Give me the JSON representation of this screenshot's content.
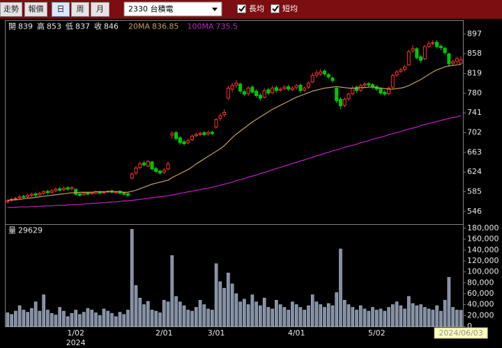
{
  "toolbar": {
    "buttons": [
      "走勢",
      "報價",
      "日",
      "周",
      "月"
    ],
    "selected": 2,
    "symbol": "2330 台積電",
    "checkboxes": [
      {
        "label": "長均",
        "checked": true
      },
      {
        "label": "短均",
        "checked": true
      }
    ]
  },
  "chart_data": [
    {
      "type": "candlestick",
      "ohlc_labels": [
        "開",
        "高",
        "低",
        "收"
      ],
      "open": [
        565,
        568,
        571,
        573,
        576,
        575,
        578,
        581,
        579,
        582,
        586,
        584,
        587,
        591,
        589,
        593,
        591,
        590,
        581,
        579,
        583,
        581,
        582,
        585,
        583,
        585,
        587,
        583,
        586,
        583,
        581,
        612,
        622,
        633,
        642,
        636,
        644,
        631,
        626,
        624,
        630,
        697,
        702,
        692,
        684,
        682,
        688,
        696,
        699,
        702,
        699,
        703,
        713,
        730,
        738,
        770,
        788,
        796,
        798,
        783,
        779,
        792,
        784,
        776,
        772,
        787,
        781,
        791,
        786,
        789,
        793,
        787,
        791,
        796,
        786,
        792,
        802,
        816,
        818,
        824,
        817,
        810,
        790,
        768,
        756,
        769,
        779,
        792,
        786,
        796,
        799,
        797,
        793,
        789,
        782,
        779,
        792,
        816,
        823,
        827,
        836,
        864,
        868,
        852,
        848,
        873,
        879,
        881,
        873,
        869,
        858,
        839,
        843,
        839
      ],
      "high": [
        570,
        573,
        575,
        578,
        579,
        581,
        583,
        584,
        585,
        588,
        589,
        590,
        593,
        594,
        595,
        596,
        596,
        591,
        583,
        584,
        585,
        585,
        587,
        587,
        586,
        588,
        589,
        587,
        588,
        585,
        583,
        624,
        636,
        645,
        646,
        648,
        646,
        634,
        628,
        632,
        645,
        705,
        706,
        695,
        688,
        690,
        698,
        702,
        704,
        705,
        706,
        706,
        730,
        740,
        748,
        795,
        800,
        806,
        801,
        788,
        794,
        796,
        788,
        780,
        790,
        791,
        794,
        795,
        792,
        796,
        797,
        794,
        798,
        799,
        793,
        803,
        820,
        826,
        828,
        827,
        820,
        813,
        792,
        772,
        772,
        781,
        795,
        795,
        799,
        802,
        802,
        800,
        796,
        792,
        786,
        793,
        818,
        826,
        830,
        836,
        866,
        875,
        871,
        856,
        876,
        883,
        885,
        885,
        877,
        872,
        860,
        846,
        852,
        853
      ],
      "low": [
        562,
        565,
        568,
        570,
        571,
        572,
        575,
        575,
        576,
        579,
        580,
        581,
        584,
        585,
        586,
        587,
        588,
        578,
        575,
        577,
        578,
        579,
        580,
        580,
        581,
        583,
        582,
        581,
        580,
        578,
        575,
        610,
        619,
        630,
        635,
        634,
        628,
        622,
        619,
        620,
        627,
        690,
        686,
        678,
        676,
        679,
        685,
        693,
        695,
        695,
        696,
        697,
        710,
        725,
        733,
        767,
        782,
        790,
        780,
        774,
        775,
        779,
        771,
        765,
        770,
        776,
        778,
        781,
        783,
        786,
        784,
        784,
        787,
        781,
        783,
        788,
        800,
        811,
        814,
        814,
        808,
        800,
        760,
        748,
        752,
        765,
        776,
        780,
        782,
        792,
        792,
        788,
        784,
        776,
        774,
        776,
        789,
        812,
        820,
        823,
        834,
        860,
        847,
        840,
        845,
        869,
        875,
        868,
        865,
        856,
        832,
        834,
        838,
        837
      ],
      "close": [
        567,
        570,
        572,
        575,
        574,
        578,
        580,
        578,
        582,
        585,
        583,
        587,
        590,
        588,
        592,
        590,
        593,
        580,
        578,
        582,
        580,
        583,
        585,
        582,
        584,
        586,
        584,
        585,
        582,
        580,
        578,
        620,
        632,
        640,
        638,
        645,
        630,
        625,
        622,
        628,
        640,
        700,
        690,
        682,
        680,
        686,
        695,
        698,
        700,
        698,
        702,
        700,
        728,
        735,
        742,
        790,
        795,
        800,
        784,
        778,
        790,
        782,
        775,
        770,
        785,
        780,
        790,
        785,
        788,
        792,
        788,
        790,
        795,
        785,
        790,
        800,
        815,
        820,
        822,
        818,
        812,
        805,
        765,
        755,
        768,
        778,
        790,
        785,
        795,
        798,
        796,
        792,
        788,
        780,
        778,
        790,
        815,
        822,
        826,
        832,
        862,
        868,
        850,
        845,
        872,
        878,
        880,
        872,
        870,
        860,
        838,
        842,
        848,
        846
      ],
      "up_color": "#ff3232",
      "down_color": "#00c800",
      "series": [
        {
          "name": "20MA",
          "color": "#c8a060",
          "values": [
            568,
            569,
            569,
            570,
            571,
            572,
            573,
            574,
            575,
            576,
            577,
            578,
            579,
            580,
            581,
            582,
            583,
            583,
            584,
            584,
            584,
            584,
            585,
            585,
            585,
            585,
            585,
            585,
            585,
            584,
            584,
            586,
            588,
            591,
            594,
            597,
            600,
            602,
            604,
            606,
            608,
            613,
            617,
            621,
            625,
            629,
            634,
            640,
            645,
            650,
            655,
            660,
            665,
            670,
            676,
            684,
            692,
            699,
            705,
            711,
            717,
            723,
            728,
            733,
            738,
            743,
            748,
            752,
            756,
            760,
            764,
            768,
            772,
            775,
            778,
            781,
            784,
            786,
            788,
            790,
            791,
            792,
            793,
            792,
            791,
            790,
            790,
            790,
            791,
            791,
            792,
            792,
            791,
            790,
            789,
            788,
            788,
            789,
            790,
            792,
            795,
            799,
            803,
            807,
            812,
            817,
            822,
            826,
            829,
            832,
            834,
            835,
            836,
            836.85
          ]
        },
        {
          "name": "100MA",
          "color": "#c020c8",
          "values": [
            554,
            554,
            554,
            555,
            555,
            555,
            556,
            556,
            556,
            557,
            557,
            557,
            558,
            558,
            558,
            559,
            559,
            560,
            560,
            561,
            561,
            562,
            562,
            563,
            563,
            564,
            565,
            565,
            566,
            567,
            567,
            568,
            569,
            570,
            571,
            572,
            573,
            574,
            575,
            576,
            577,
            579,
            580,
            582,
            583,
            585,
            586,
            588,
            589,
            591,
            592,
            594,
            596,
            598,
            600,
            602,
            604,
            607,
            609,
            611,
            614,
            616,
            618,
            621,
            623,
            626,
            628,
            631,
            633,
            636,
            638,
            641,
            643,
            646,
            648,
            651,
            653,
            656,
            658,
            661,
            663,
            666,
            668,
            670,
            673,
            675,
            677,
            679,
            682,
            684,
            686,
            689,
            691,
            693,
            695,
            698,
            700,
            702,
            704,
            707,
            709,
            711,
            713,
            716,
            718,
            720,
            722,
            724,
            726,
            728,
            730,
            732,
            733,
            735.5
          ]
        }
      ],
      "ylim": [
        521,
        923
      ],
      "yticks": [
        546,
        585,
        624,
        663,
        702,
        741,
        780,
        819,
        858,
        897
      ],
      "grid": false
    },
    {
      "type": "bar",
      "label": "量",
      "color": "#8290a6",
      "categories": [
        null,
        null,
        null,
        null,
        null,
        null,
        null,
        null,
        null,
        null,
        null,
        null,
        null,
        null,
        null,
        null,
        null,
        "1/02",
        null,
        null,
        null,
        null,
        null,
        null,
        null,
        null,
        null,
        null,
        null,
        null,
        null,
        null,
        null,
        null,
        null,
        null,
        null,
        null,
        null,
        "2/01",
        null,
        null,
        null,
        null,
        null,
        null,
        null,
        null,
        null,
        null,
        null,
        null,
        "3/01",
        null,
        null,
        null,
        null,
        null,
        null,
        null,
        null,
        null,
        null,
        null,
        null,
        null,
        null,
        null,
        null,
        null,
        null,
        null,
        "4/01",
        null,
        null,
        null,
        null,
        null,
        null,
        null,
        null,
        null,
        null,
        null,
        null,
        null,
        null,
        null,
        null,
        null,
        null,
        null,
        "5/02",
        null,
        null,
        null,
        null,
        null,
        null,
        null,
        null,
        null,
        null,
        null,
        null,
        null,
        null,
        null,
        null,
        null,
        null,
        null,
        null,
        "2024/06/03"
      ],
      "year_label": "2024",
      "values": [
        25000,
        22000,
        28000,
        38000,
        30000,
        26000,
        33000,
        45000,
        28000,
        58000,
        30000,
        24000,
        21000,
        35000,
        28000,
        18000,
        24000,
        30000,
        22000,
        26000,
        33000,
        30000,
        25000,
        20000,
        32000,
        28000,
        24000,
        18000,
        26000,
        22000,
        30000,
        178000,
        75000,
        52000,
        40000,
        46000,
        30000,
        28000,
        25000,
        48000,
        45000,
        130000,
        55000,
        45000,
        38000,
        30000,
        28000,
        35000,
        48000,
        40000,
        32000,
        30000,
        115000,
        82000,
        70000,
        98000,
        78000,
        60000,
        45000,
        50000,
        40000,
        58000,
        45000,
        38000,
        52000,
        35000,
        32000,
        48000,
        40000,
        35000,
        30000,
        45000,
        40000,
        35000,
        30000,
        38000,
        58000,
        45000,
        40000,
        35000,
        42000,
        38000,
        62000,
        142000,
        48000,
        40000,
        35000,
        30000,
        38000,
        32000,
        28000,
        35000,
        30000,
        32000,
        28000,
        35000,
        40000,
        45000,
        38000,
        32000,
        55000,
        42000,
        38000,
        40000,
        35000,
        32000,
        30000,
        38000,
        28000,
        48000,
        90000,
        35000,
        30000,
        29629
      ],
      "ylim": [
        0,
        185000
      ],
      "yticks": [
        0,
        {
          "value": 20000,
          "label": "20,000"
        },
        {
          "value": 40000,
          "label": "40,000"
        },
        {
          "value": 60000,
          "label": "60,000"
        },
        {
          "value": 80000,
          "label": "80,000"
        },
        {
          "value": 100000,
          "label": "100,000"
        },
        {
          "value": 120000,
          "label": "120,000"
        },
        {
          "value": 140000,
          "label": "140,000"
        },
        {
          "value": 160000,
          "label": "160,000"
        },
        {
          "value": 180000,
          "label": "180,000"
        }
      ],
      "grid": false
    }
  ]
}
